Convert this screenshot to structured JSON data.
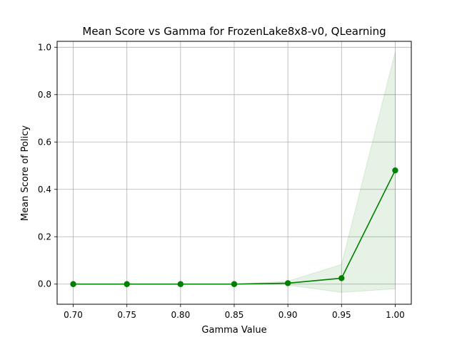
{
  "chart_data": {
    "type": "line",
    "title": "Mean Score vs Gamma for FrozenLake8x8-v0, QLearning",
    "xlabel": "Gamma Value",
    "ylabel": "Mean Score of Policy",
    "x": [
      0.7,
      0.75,
      0.8,
      0.85,
      0.9,
      0.95,
      1.0
    ],
    "x_tick_labels": [
      "0.70",
      "0.75",
      "0.80",
      "0.85",
      "0.90",
      "0.95",
      "1.00"
    ],
    "y_ticks": [
      0.0,
      0.2,
      0.4,
      0.6,
      0.8,
      1.0
    ],
    "y_tick_labels": [
      "0.0",
      "0.2",
      "0.4",
      "0.6",
      "0.8",
      "1.0"
    ],
    "xlim": [
      0.685,
      1.015
    ],
    "ylim": [
      -0.085,
      1.025
    ],
    "grid": true,
    "series": [
      {
        "values": [
          0.0,
          0.0,
          0.0,
          0.0,
          0.004,
          0.025,
          0.48
        ],
        "band_lower": [
          0.0,
          0.0,
          0.0,
          0.0,
          -0.004,
          -0.035,
          -0.02
        ],
        "band_upper": [
          0.0,
          0.0,
          0.0,
          0.0,
          0.012,
          0.083,
          0.98
        ],
        "color": "#008000",
        "band_color": "#008000",
        "marker": "circle"
      }
    ]
  }
}
